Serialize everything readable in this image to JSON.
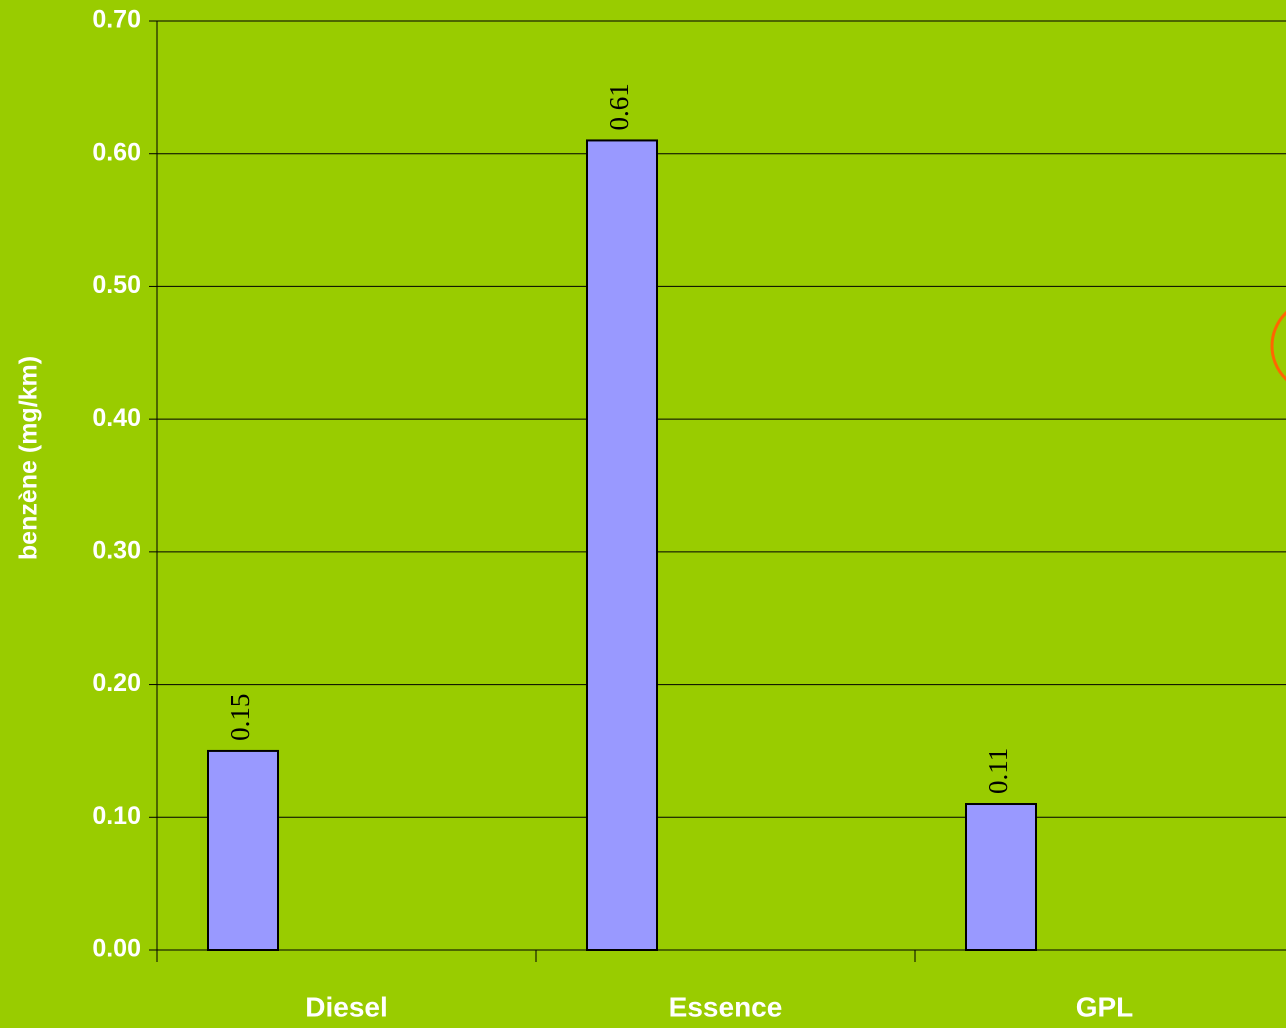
{
  "chart_data": {
    "type": "bar",
    "y_label": "benzène (mg/km)",
    "categories": [
      "Diesel",
      "Essence",
      "GPL"
    ],
    "values": [
      0.15,
      0.61,
      0.11
    ],
    "color": "#9999ff",
    "ylim": [
      0,
      0.7
    ],
    "yticks": [
      {
        "value": 0,
        "label": "0.00"
      },
      {
        "value": 0.1,
        "label": "0.10"
      },
      {
        "value": 0.2,
        "label": "0.20"
      },
      {
        "value": 0.3,
        "label": "0.30"
      },
      {
        "value": 0.4,
        "label": "0.40"
      },
      {
        "value": 0.5,
        "label": "0.50"
      },
      {
        "value": 0.6,
        "label": "0.60"
      },
      {
        "value": 0.7,
        "label": "0.70"
      }
    ],
    "grid": true
  }
}
